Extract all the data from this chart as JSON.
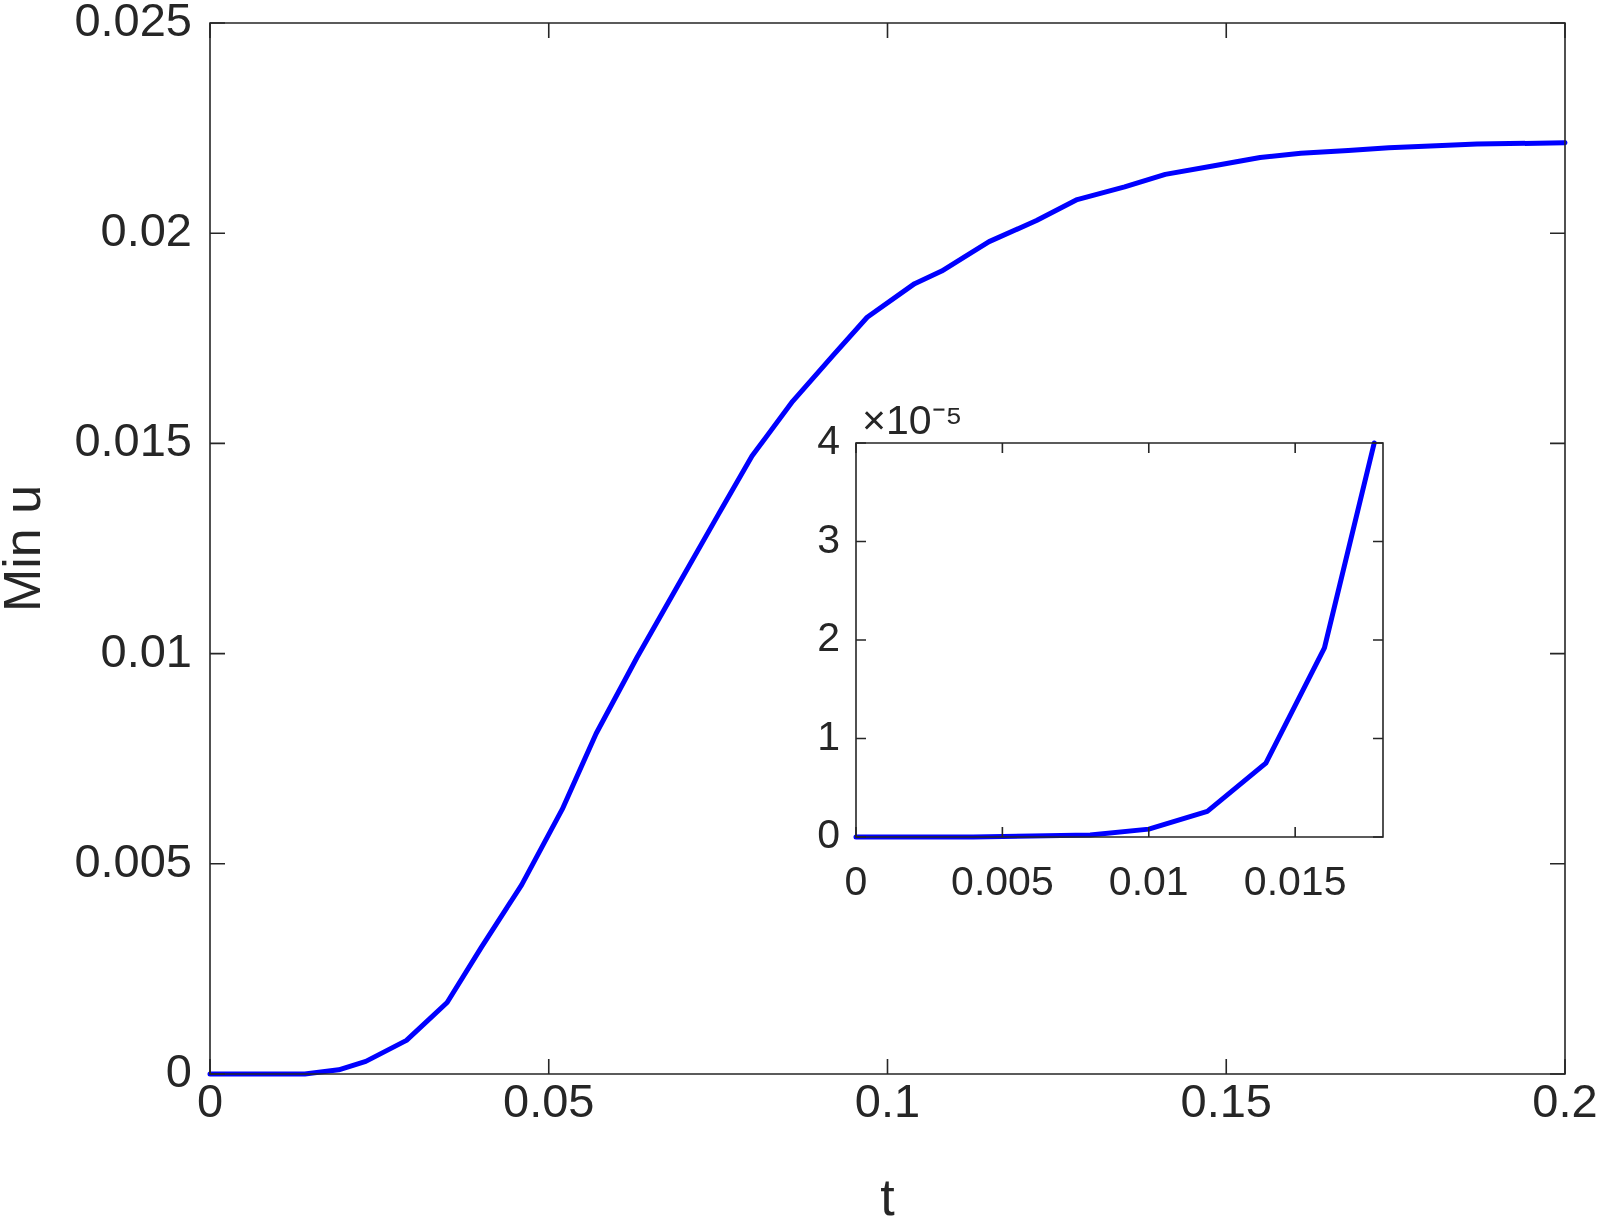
{
  "chart_data": [
    {
      "type": "line",
      "xlabel": "t",
      "ylabel": "Min u",
      "x": [
        0,
        0.01,
        0.014,
        0.019,
        0.023,
        0.029,
        0.035,
        0.04,
        0.046,
        0.052,
        0.057,
        0.063,
        0.069,
        0.075,
        0.08,
        0.086,
        0.092,
        0.097,
        0.104,
        0.108,
        0.115,
        0.122,
        0.128,
        0.135,
        0.141,
        0.148,
        0.155,
        0.161,
        0.168,
        0.174,
        0.181,
        0.187,
        0.2
      ],
      "series": [
        {
          "color": "#0000ff",
          "values": [
            0,
            0,
            0,
            0.0001,
            0.0003,
            0.0008,
            0.0017,
            0.003,
            0.0045,
            0.0063,
            0.0081,
            0.0099,
            0.0116,
            0.0133,
            0.0147,
            0.016,
            0.0171,
            0.018,
            0.0188,
            0.0191,
            0.0198,
            0.0203,
            0.0208,
            0.0211,
            0.0214,
            0.0216,
            0.0218,
            0.0219,
            0.02197,
            0.02203,
            0.02208,
            0.02212,
            0.02215
          ]
        }
      ],
      "xlim": [
        0,
        0.2
      ],
      "ylim": [
        0,
        0.025
      ],
      "xticks": [
        0,
        0.05,
        0.1,
        0.15,
        0.2
      ],
      "yticks": [
        0,
        0.005,
        0.01,
        0.015,
        0.02,
        0.025
      ],
      "grid": false,
      "legend": false,
      "marker": "none",
      "line_style": "solid"
    },
    {
      "type": "line",
      "annotations": [
        "×10⁻⁵"
      ],
      "x": [
        0,
        0.002,
        0.004,
        0.006,
        0.008,
        0.01,
        0.012,
        0.014,
        0.016,
        0.0177
      ],
      "series": [
        {
          "color": "#0000ff",
          "values": [
            0,
            0,
            0,
            0.01,
            0.02,
            0.08,
            0.26,
            0.75,
            1.92,
            4
          ]
        }
      ],
      "xlim": [
        0,
        0.018
      ],
      "ylim": [
        0,
        4
      ],
      "xticks": [
        0,
        0.005,
        0.01,
        0.015
      ],
      "yticks": [
        0,
        1,
        2,
        3,
        4
      ],
      "grid": false,
      "legend": false,
      "marker": "none",
      "line_style": "solid"
    }
  ]
}
